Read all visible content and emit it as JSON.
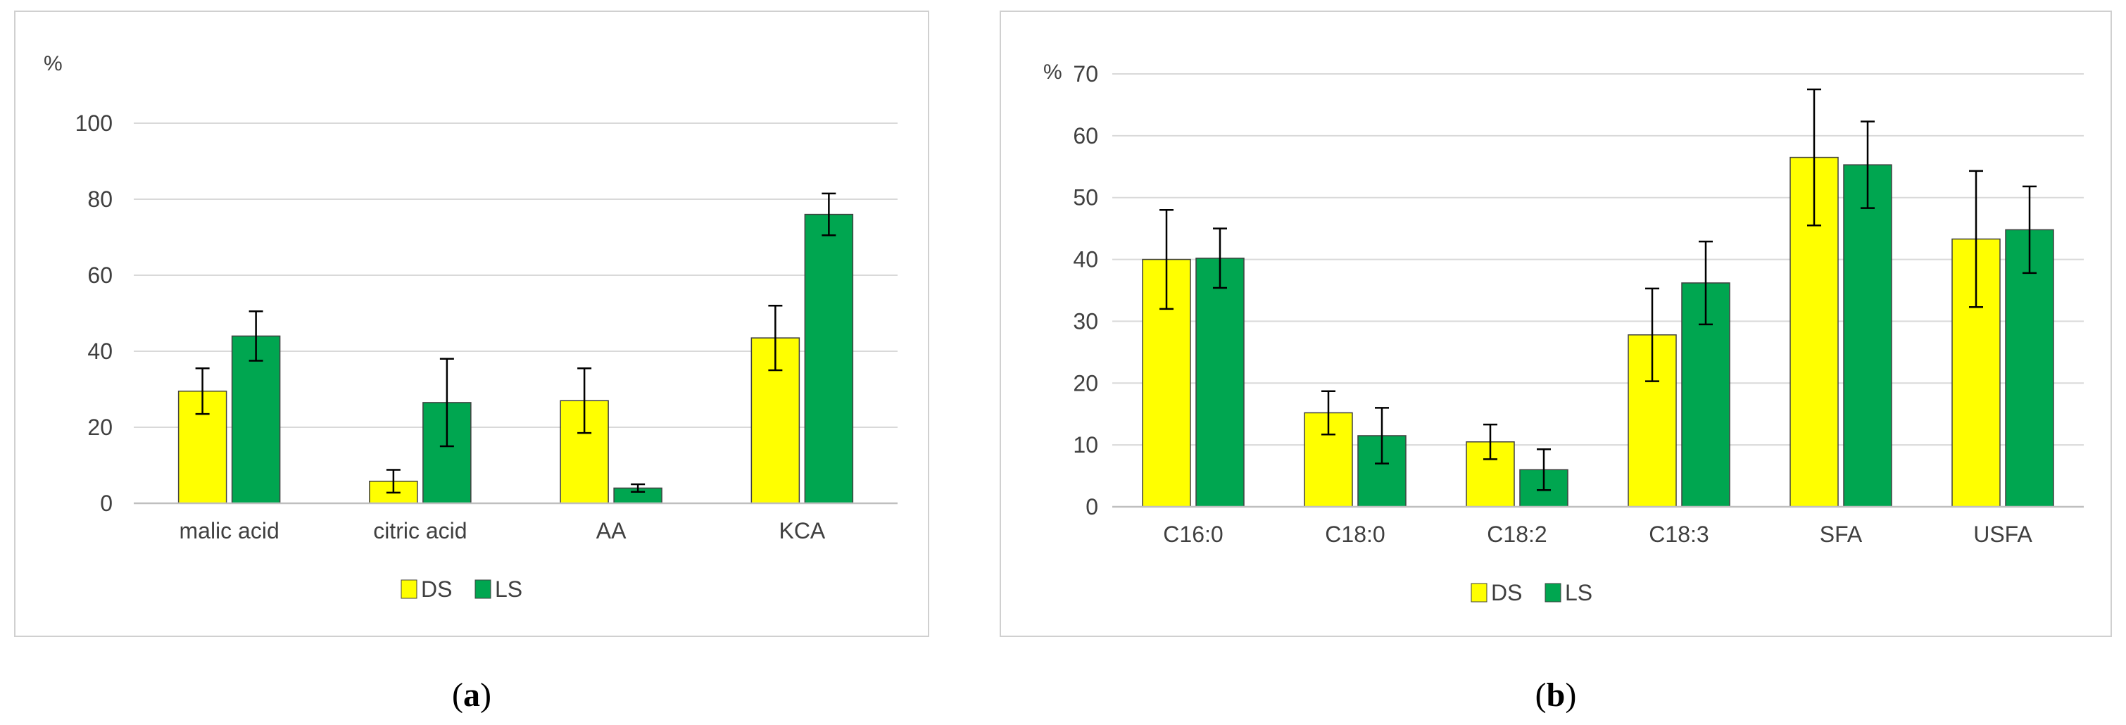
{
  "colors": {
    "ds": "#ffff00",
    "ls": "#00a650",
    "grid": "#d9d9d9",
    "axis": "#bfbfbf",
    "text": "#404040",
    "frame": "#d0d0d0"
  },
  "captions": [
    {
      "open": "(",
      "letter": "a",
      "close": ")"
    },
    {
      "open": "(",
      "letter": "b",
      "close": ")"
    }
  ],
  "chart_data": [
    {
      "id": "a",
      "type": "bar",
      "ylabel": "%",
      "ylim": [
        0,
        100
      ],
      "yticks": [
        0,
        20,
        40,
        60,
        80,
        100
      ],
      "categories": [
        "malic acid",
        "citric acid",
        "AA",
        "KCA"
      ],
      "series": [
        {
          "name": "DS",
          "values": [
            29.5,
            5.8,
            27.0,
            43.5
          ],
          "errors": [
            6.0,
            3.0,
            8.5,
            8.5
          ]
        },
        {
          "name": "LS",
          "values": [
            44.0,
            26.5,
            4.0,
            76.0
          ],
          "errors": [
            6.5,
            11.5,
            1.0,
            5.5
          ]
        }
      ],
      "legend": "bottom"
    },
    {
      "id": "b",
      "type": "bar",
      "ylabel": "%",
      "ylim": [
        0,
        70
      ],
      "yticks": [
        0,
        10,
        20,
        30,
        40,
        50,
        60,
        70
      ],
      "categories": [
        "C16:0",
        "C18:0",
        "C18:2",
        "C18:3",
        "SFA",
        "USFA"
      ],
      "series": [
        {
          "name": "DS",
          "values": [
            40.0,
            15.2,
            10.5,
            27.8,
            56.5,
            43.3
          ],
          "errors": [
            8.0,
            3.5,
            2.8,
            7.5,
            11.0,
            11.0
          ]
        },
        {
          "name": "LS",
          "values": [
            40.2,
            11.5,
            6.0,
            36.2,
            55.3,
            44.8
          ],
          "errors": [
            4.8,
            4.5,
            3.3,
            6.7,
            7.0,
            7.0
          ]
        }
      ],
      "legend": "bottom"
    }
  ]
}
